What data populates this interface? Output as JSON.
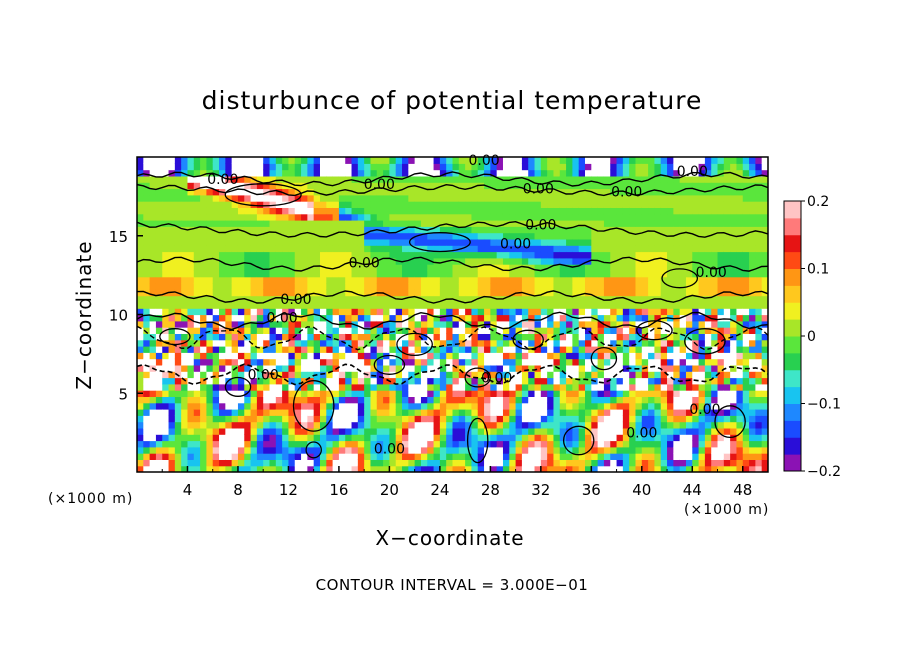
{
  "chart_data": {
    "type": "heatmap",
    "title": "disturbunce of potential temperature",
    "xlabel": "X−coordinate",
    "ylabel": "Z−coordinate",
    "x_units": "(×1000 m)",
    "y_units": "(×1000 m)",
    "xlim": [
      0,
      50
    ],
    "ylim": [
      0,
      20
    ],
    "x_ticks": [
      4,
      8,
      12,
      16,
      20,
      24,
      28,
      32,
      36,
      40,
      44,
      48
    ],
    "y_ticks": [
      5,
      10,
      15
    ],
    "colorbar": {
      "range": [
        -0.2,
        0.2
      ],
      "ticks": [
        "0.2",
        "0.1",
        "0",
        "−0.1",
        "−0.2"
      ],
      "tick_values": [
        0.2,
        0.1,
        0,
        -0.1,
        -0.2
      ],
      "colors": [
        "#8b12b4",
        "#2a0ed8",
        "#1a4cff",
        "#1e88ff",
        "#18c4f0",
        "#3ee6c8",
        "#28d050",
        "#5ae63c",
        "#a8e628",
        "#f0f020",
        "#ffc81e",
        "#ff9614",
        "#ff4a14",
        "#e61414",
        "#ff7a7a",
        "#ffc4c4"
      ]
    },
    "contour_labels": [
      {
        "text": "0.00",
        "x": 27.5,
        "z": 19.8
      },
      {
        "text": "0.00",
        "x": 6.8,
        "z": 18.6
      },
      {
        "text": "0.00",
        "x": 19.2,
        "z": 18.3
      },
      {
        "text": "0.00",
        "x": 31.8,
        "z": 18.0
      },
      {
        "text": "0.00",
        "x": 38.8,
        "z": 17.8
      },
      {
        "text": "0.00",
        "x": 44.0,
        "z": 19.1
      },
      {
        "text": "0.00",
        "x": 32.0,
        "z": 15.7
      },
      {
        "text": "0.00",
        "x": 30.0,
        "z": 14.5
      },
      {
        "text": "0.00",
        "x": 18.0,
        "z": 13.3
      },
      {
        "text": "0.00",
        "x": 12.6,
        "z": 11.0
      },
      {
        "text": "0.00",
        "x": 11.5,
        "z": 9.8
      },
      {
        "text": "0.00",
        "x": 10.0,
        "z": 6.2
      },
      {
        "text": "0.00",
        "x": 28.5,
        "z": 6.0
      },
      {
        "text": "0.00",
        "x": 45.5,
        "z": 12.7
      },
      {
        "text": "0.00",
        "x": 45.0,
        "z": 4.0
      },
      {
        "text": "0.00",
        "x": 20.0,
        "z": 1.5
      },
      {
        "text": "0.00",
        "x": 40.0,
        "z": 2.5
      }
    ],
    "grid": false
  },
  "footer": {
    "contour_interval": "CONTOUR INTERVAL = 3.000E−01"
  }
}
